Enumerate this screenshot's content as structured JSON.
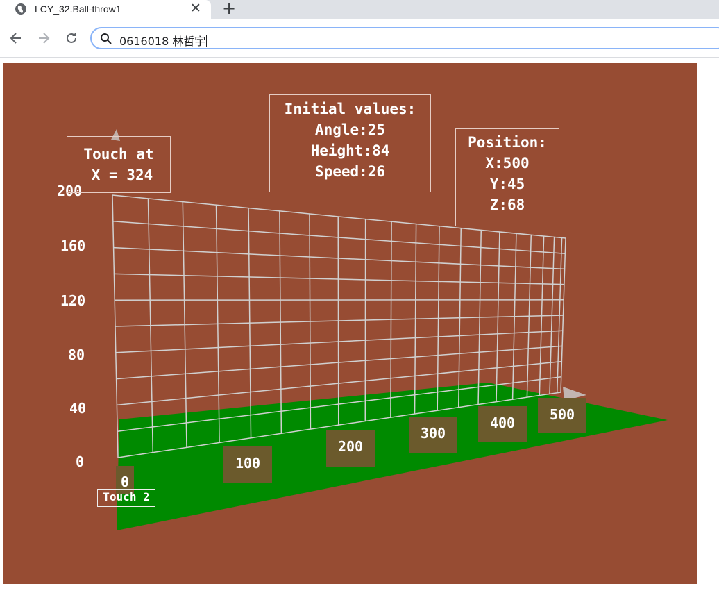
{
  "browser": {
    "tab_title": "LCY_32.Ball-throw1",
    "address": "0616018 林哲宇",
    "icons": [
      "globe-icon",
      "close-icon",
      "plus-icon",
      "back-arrow-icon",
      "forward-arrow-icon",
      "reload-icon",
      "search-icon"
    ]
  },
  "scene": {
    "colors": {
      "background": "#974c33",
      "ground": "#008a00",
      "grid": "#d0d0d0",
      "marker": "#6b5a2c"
    },
    "y_axis_labels": [
      "200",
      "160",
      "120",
      "80",
      "40",
      "0"
    ],
    "x_axis_labels": [
      "0",
      "100",
      "200",
      "300",
      "400",
      "500"
    ],
    "touch": {
      "line1": "Touch at",
      "line2": "X = 324"
    },
    "initial": {
      "title": "Initial values:",
      "angle": "Angle:25",
      "height": "Height:84",
      "speed": "Speed:26"
    },
    "position": {
      "title": "Position:",
      "x": "X:500",
      "y": "Y:45",
      "z": "Z:68"
    },
    "touch2_label": "Touch 2"
  }
}
